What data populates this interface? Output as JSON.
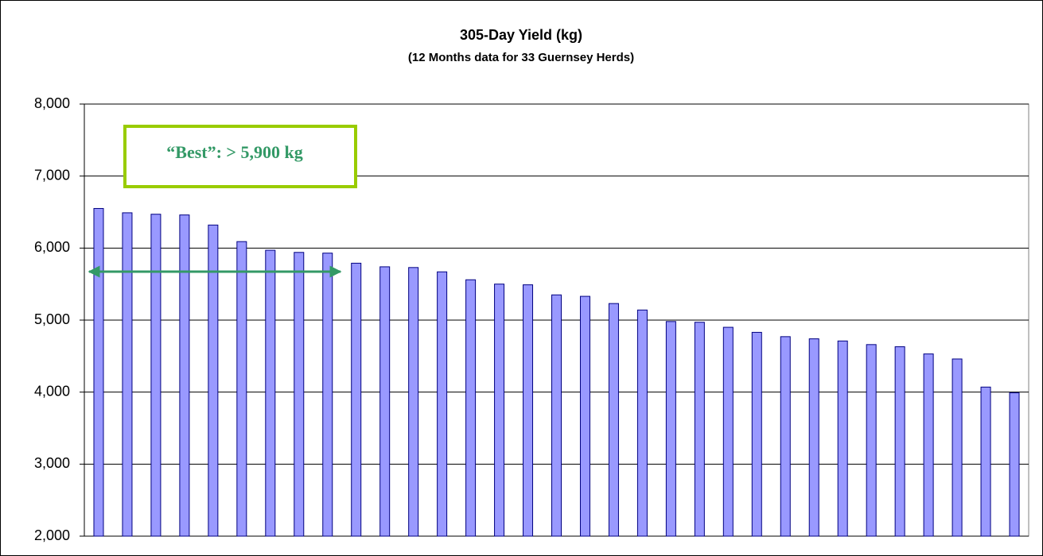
{
  "chart_data": {
    "type": "bar",
    "title": "305-Day Yield (kg)",
    "subtitle": "(12 Months data for 33 Guernsey Herds)",
    "annotation": "“Best”: > 5,900 kg",
    "categories": [
      null,
      null,
      null,
      null,
      null,
      null,
      null,
      null,
      null,
      null,
      null,
      null,
      null,
      null,
      null,
      null,
      null,
      null,
      null,
      null,
      null,
      null,
      null,
      null,
      null,
      null,
      null,
      null,
      null,
      null,
      null,
      null,
      null
    ],
    "values": [
      6550,
      6490,
      6470,
      6460,
      6320,
      6090,
      5970,
      5940,
      5930,
      5790,
      5740,
      5730,
      5670,
      5560,
      5500,
      5490,
      5350,
      5330,
      5230,
      5140,
      4980,
      4970,
      4900,
      4830,
      4770,
      4740,
      4710,
      4660,
      4630,
      4530,
      4460,
      4070,
      3990
    ],
    "color": "#9999ff",
    "ylim": [
      2000,
      8000
    ],
    "yticks": [
      {
        "value": 2000,
        "label": "2,000"
      },
      {
        "value": 3000,
        "label": "3,000"
      },
      {
        "value": 4000,
        "label": "4,000"
      },
      {
        "value": 5000,
        "label": "5,000"
      },
      {
        "value": 6000,
        "label": "6,000"
      },
      {
        "value": 7000,
        "label": "7,000"
      },
      {
        "value": 8000,
        "label": "8,000"
      }
    ],
    "grid": true
  }
}
